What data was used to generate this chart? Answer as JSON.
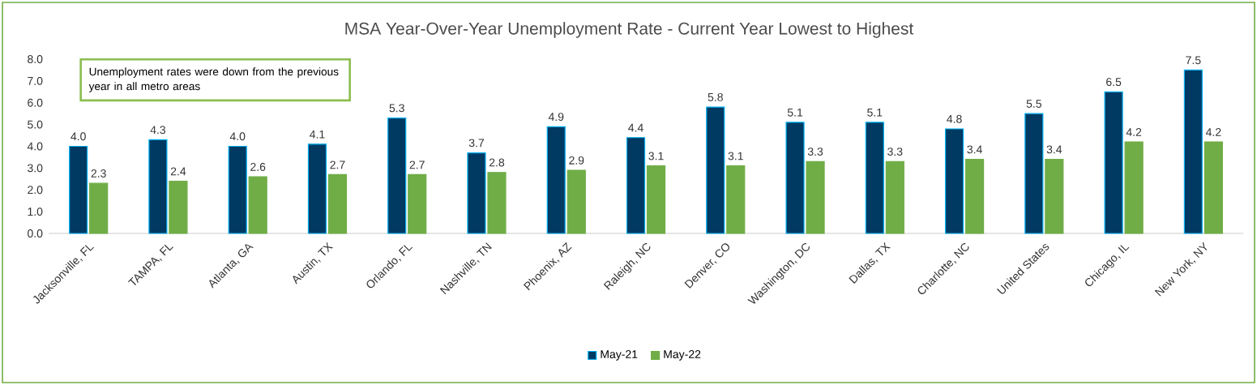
{
  "chart_data": {
    "type": "bar",
    "title": "MSA Year-Over-Year Unemployment Rate  - Current Year Lowest to Highest",
    "categories": [
      "Jacksonville, FL",
      "TAMPA, FL",
      "Atlanta, GA",
      "Austin, TX",
      "Orlando, FL",
      "Nashville, TN",
      "Phoenix, AZ",
      "Raleigh, NC",
      "Denver, CO",
      "Washington, DC",
      "Dallas, TX",
      "Charlotte, NC",
      "United States",
      "Chicago, IL",
      "New York, NY"
    ],
    "series": [
      {
        "name": "May-21",
        "color": "#003a63",
        "values": [
          4.0,
          4.3,
          4.0,
          4.1,
          5.3,
          3.7,
          4.9,
          4.4,
          5.8,
          5.1,
          5.1,
          4.8,
          5.5,
          6.5,
          7.5
        ],
        "value_labels": [
          "4.0",
          "4.3",
          "4.0",
          "4.1",
          "5.3",
          "3.7",
          "4.9",
          "4.4",
          "5.8",
          "5.1",
          "5.1",
          "4.8",
          "5.5",
          "6.5",
          "7.5"
        ]
      },
      {
        "name": "May-22",
        "color": "#70ad47",
        "values": [
          2.3,
          2.4,
          2.6,
          2.7,
          2.7,
          2.8,
          2.9,
          3.1,
          3.1,
          3.3,
          3.3,
          3.4,
          3.4,
          4.2,
          4.2
        ],
        "value_labels": [
          "2.3",
          "2.4",
          "2.6",
          "2.7",
          "2.7",
          "2.8",
          "2.9",
          "3.1",
          "3.1",
          "3.3",
          "3.3",
          "3.4",
          "3.4",
          "4.2",
          "4.2"
        ]
      }
    ],
    "ylim": [
      0,
      8
    ],
    "yticks": [
      {
        "value": 0,
        "label": "0.0"
      },
      {
        "value": 1,
        "label": "1.0"
      },
      {
        "value": 2,
        "label": "2.0"
      },
      {
        "value": 3,
        "label": "3.0"
      },
      {
        "value": 4,
        "label": "4.0"
      },
      {
        "value": 5,
        "label": "5.0"
      },
      {
        "value": 6,
        "label": "6.0"
      },
      {
        "value": 7,
        "label": "7.0"
      },
      {
        "value": 8,
        "label": "8.0"
      }
    ],
    "annotations": [
      "Unemployment rates were down from the previous year in all metro areas"
    ],
    "legend": "bottom",
    "grid": false
  }
}
